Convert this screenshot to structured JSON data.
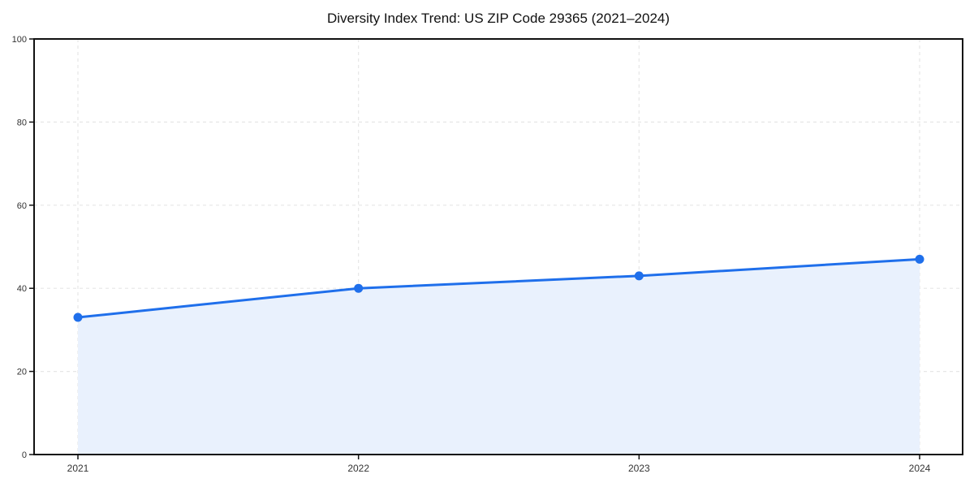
{
  "colors": {
    "line": "#1f6feb",
    "marker": "#1f6feb",
    "fill": "#e9f1fd",
    "grid": "#e6e6e6",
    "axis": "#111111",
    "tick_label": "#333333",
    "title": "#111111",
    "background": "#ffffff"
  },
  "chart_data": {
    "type": "area",
    "title": "Diversity Index Trend: US ZIP Code 29365 (2021–2024)",
    "categories": [
      "2021",
      "2022",
      "2023",
      "2024"
    ],
    "series": [
      {
        "name": "Diversity Index",
        "values": [
          33,
          40,
          43,
          47
        ]
      }
    ],
    "xlabel": "",
    "ylabel": "",
    "ylim": [
      0,
      100
    ],
    "yticks": [
      0,
      20,
      40,
      60,
      80,
      100
    ],
    "grid": true,
    "grid_style": "dashed",
    "legend_position": "none",
    "marker": "circle",
    "line_width": 3,
    "marker_radius": 5.5
  }
}
